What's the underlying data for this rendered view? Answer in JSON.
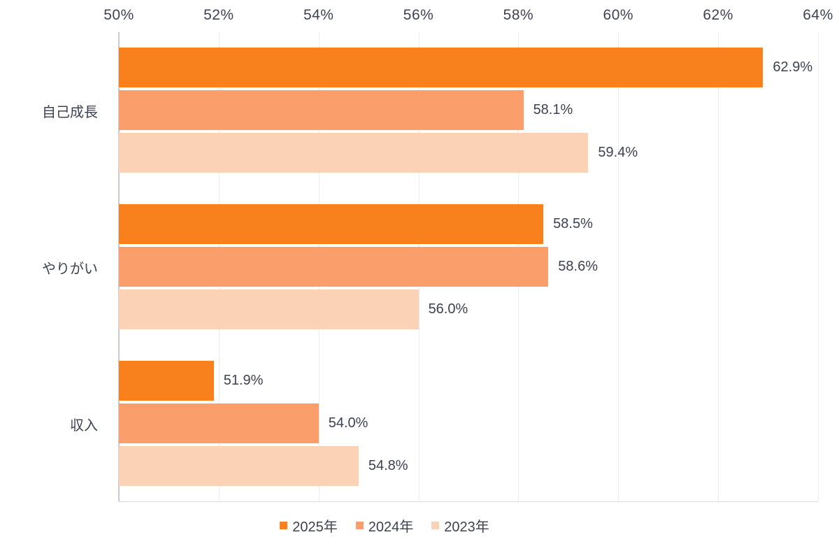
{
  "chart_data": {
    "type": "bar",
    "orientation": "horizontal",
    "title": "",
    "xlabel": "",
    "ylabel": "",
    "xlim": [
      50,
      64
    ],
    "grid": true,
    "value_suffix": "%",
    "ticks": [
      {
        "value": 50,
        "label": "50%"
      },
      {
        "value": 52,
        "label": "52%"
      },
      {
        "value": 54,
        "label": "54%"
      },
      {
        "value": 56,
        "label": "56%"
      },
      {
        "value": 58,
        "label": "58%"
      },
      {
        "value": 60,
        "label": "60%"
      },
      {
        "value": 62,
        "label": "62%"
      },
      {
        "value": 64,
        "label": "64%"
      }
    ],
    "categories": [
      "自己成長",
      "やりがい",
      "収入"
    ],
    "series": [
      {
        "name": "2025年",
        "color": "#F8811D",
        "values": [
          62.9,
          58.5,
          51.9
        ]
      },
      {
        "name": "2024年",
        "color": "#FA9E6B",
        "values": [
          58.1,
          58.6,
          54.0
        ]
      },
      {
        "name": "2023年",
        "color": "#FCD2B6",
        "values": [
          59.4,
          56.0,
          54.8
        ]
      }
    ],
    "legend_position": "bottom",
    "colors": {
      "text": "#3d4152",
      "gridline": "#eceaf2",
      "axis_line": "#cbc9d6",
      "background": "#ffffff"
    }
  }
}
